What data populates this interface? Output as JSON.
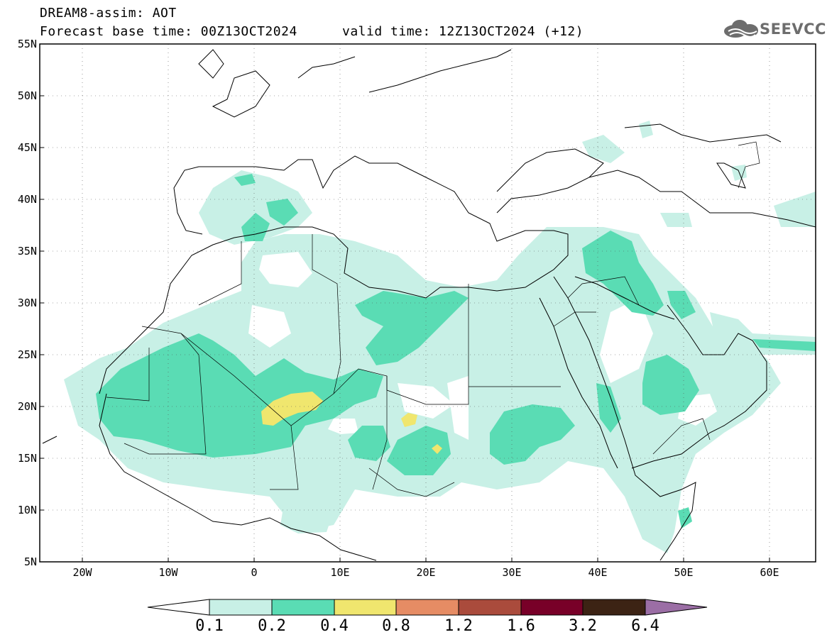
{
  "header": {
    "title": "DREAM8-assim: AOT",
    "base_time": "Forecast base time: 00Z13OCT2024",
    "valid_time": "valid time: 12Z13OCT2024 (+12)"
  },
  "logo": {
    "text": "SEEVCCC",
    "icon": "cloud-icon"
  },
  "map": {
    "lat_labels": [
      "55N",
      "50N",
      "45N",
      "40N",
      "35N",
      "30N",
      "25N",
      "20N",
      "15N",
      "10N",
      "5N"
    ],
    "lon_labels": [
      "20W",
      "10W",
      "0",
      "10E",
      "20E",
      "30E",
      "40E",
      "50E",
      "60E"
    ],
    "colors": {
      "level_0_1": "#c8f0e6",
      "level_0_2": "#5adcb4",
      "level_0_4": "#f0e66e",
      "level_0_8": "#e68c64",
      "level_1_2": "#aa4b3c",
      "level_1_6": "#780028",
      "level_3_2": "#3c2314",
      "level_6_4": "#9b6ea5"
    }
  },
  "colorbar": {
    "labels": [
      "0.1",
      "0.2",
      "0.4",
      "0.8",
      "1.2",
      "1.6",
      "3.2",
      "6.4"
    ]
  }
}
